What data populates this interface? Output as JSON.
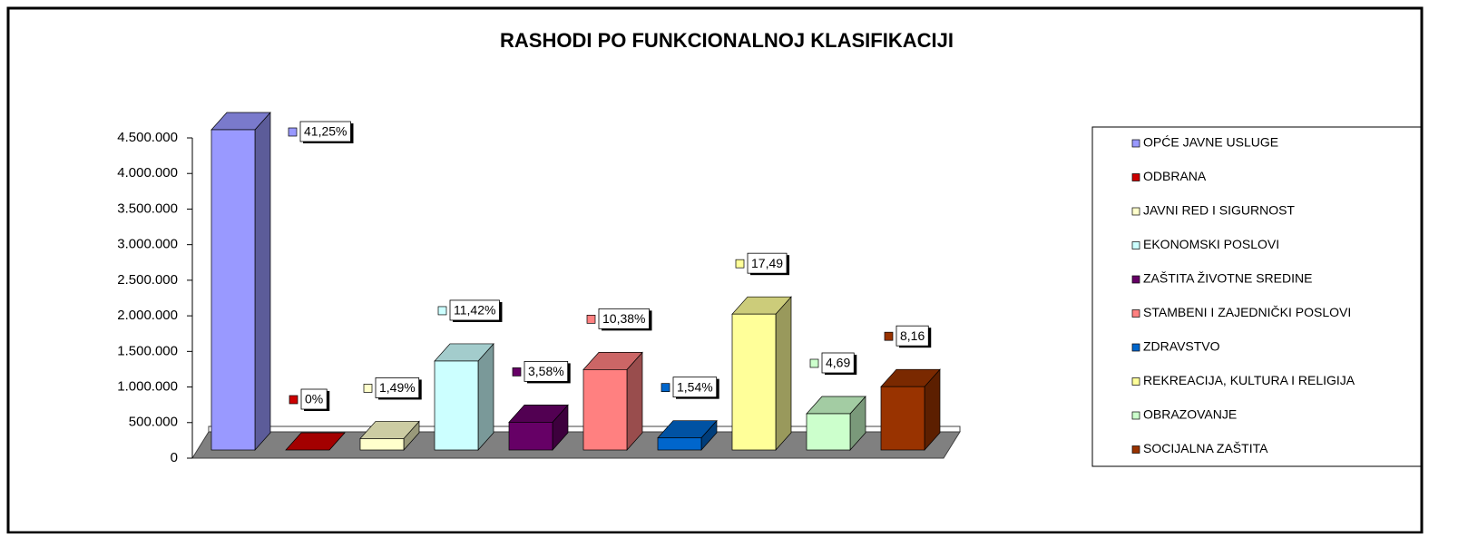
{
  "chart_data": {
    "type": "bar3d",
    "title": "RASHODI  PO FUNKCIONALNOJ KLASIFIKACIJI",
    "categories": [
      "OPĆE JAVNE USLUGE",
      "ODBRANA",
      "JAVNI RED I SIGURNOST",
      "EKONOMSKI POSLOVI",
      "ZAŠTITA ŽIVOTNE SREDINE",
      "STAMBENI I ZAJEDNIČKI POSLOVI",
      "ZDRAVSTVO",
      "REKREACIJA, KULTURA I RELIGIJA",
      "OBRAZOVANJE",
      "SOCIJALNA ZAŠTITA"
    ],
    "values": [
      4500000,
      0,
      160000,
      1250000,
      390000,
      1130000,
      170000,
      1910000,
      510000,
      890000
    ],
    "percent_labels": [
      "41,25%",
      "0%",
      "1,49%",
      "11,42%",
      "3,58%",
      "10,38%",
      "1,54%",
      "17,49",
      "4,69",
      "8,16"
    ],
    "colors": [
      "#9999ff",
      "#cc0000",
      "#ffffcc",
      "#ccffff",
      "#660066",
      "#ff8080",
      "#0066cc",
      "#ffff99",
      "#ccffcc",
      "#993300"
    ],
    "ylim": [
      0,
      4500000
    ],
    "yticks": [
      0,
      {
        "value": 500000,
        "label": "500.000"
      },
      {
        "value": 1000000,
        "label": "1.000.000"
      },
      {
        "value": 1500000,
        "label": "1.500.000"
      },
      {
        "value": 2000000,
        "label": "2.000.000"
      },
      {
        "value": 2500000,
        "label": "2.500.000"
      },
      {
        "value": 3000000,
        "label": "3.000.000"
      },
      {
        "value": 3500000,
        "label": "3.500.000"
      },
      {
        "value": 4000000,
        "label": "4.000.000"
      },
      {
        "value": 4500000,
        "label": "4.500.000"
      }
    ],
    "grid": false,
    "legend": "right"
  }
}
